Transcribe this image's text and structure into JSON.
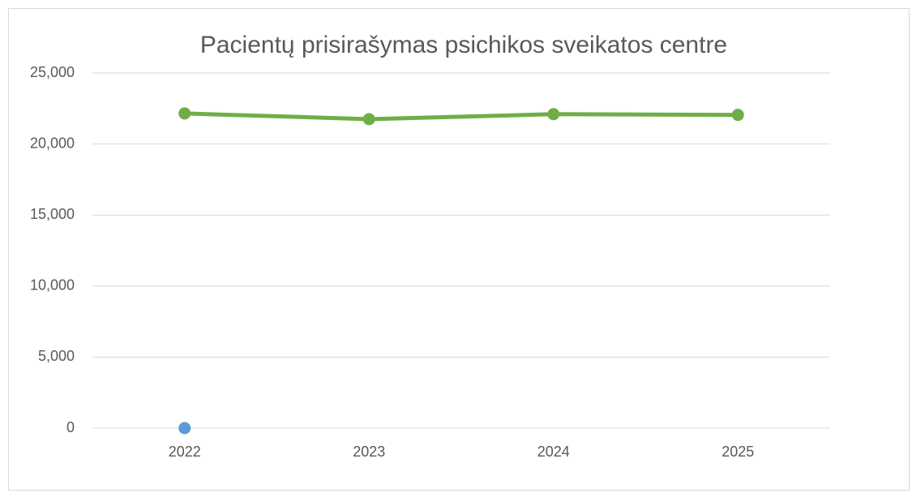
{
  "chart_data": {
    "type": "line",
    "title": "Pacientų prisirašymas psichikos sveikatos centre",
    "categories": [
      "2022",
      "2023",
      "2024",
      "2025"
    ],
    "series": [
      {
        "color": "#70ad47",
        "values": [
          22150,
          21750,
          22100,
          22050
        ]
      },
      {
        "color": "#5b9bd5",
        "values": [
          0,
          null,
          null,
          null
        ]
      }
    ],
    "ylim": [
      0,
      25000
    ],
    "yticks": [
      0,
      {
        "value": 5000,
        "label": "5,000"
      },
      {
        "value": 10000,
        "label": "10,000"
      },
      {
        "value": 15000,
        "label": "15,000"
      },
      {
        "value": 20000,
        "label": "20,000"
      },
      {
        "value": 25000,
        "label": "25,000"
      }
    ],
    "grid": true
  }
}
